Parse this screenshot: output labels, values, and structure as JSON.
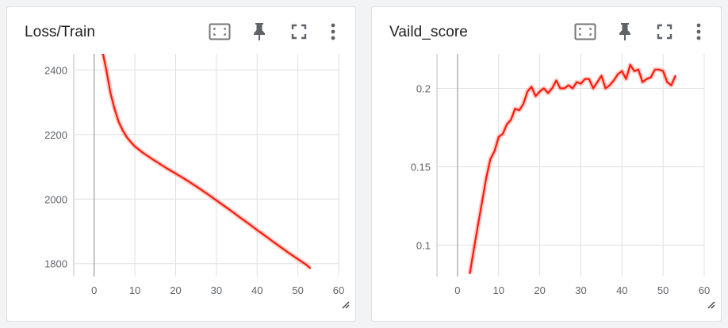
{
  "cards": [
    {
      "title": "Loss/Train",
      "icons": [
        "fit-domain-icon",
        "pin-icon",
        "fullscreen-icon",
        "more-vert-icon"
      ],
      "chart_data": {
        "type": "line",
        "title": "Loss/Train",
        "xlabel": "",
        "ylabel": "",
        "xlim": [
          -5,
          60
        ],
        "ylim": [
          1760,
          2450
        ],
        "x_ticks": [
          "0",
          "10",
          "20",
          "30",
          "40",
          "50",
          "60"
        ],
        "y_ticks": [
          "1800",
          "2000",
          "2200",
          "2400"
        ],
        "grid": true,
        "color": "#ff1a0a",
        "series": [
          {
            "x": [
              2,
              3,
              4,
              5,
              6,
              7,
              8,
              9,
              10,
              12,
              14,
              16,
              18,
              20,
              22,
              24,
              26,
              28,
              30,
              32,
              34,
              36,
              38,
              40,
              42,
              44,
              46,
              48,
              50,
              52,
              53
            ],
            "values": [
              2460,
              2400,
              2330,
              2280,
              2240,
              2213,
              2192,
              2177,
              2163,
              2143,
              2126,
              2110,
              2094,
              2079,
              2064,
              2048,
              2031,
              2014,
              1996,
              1978,
              1960,
              1941,
              1923,
              1904,
              1886,
              1867,
              1849,
              1831,
              1814,
              1797,
              1786
            ]
          }
        ]
      }
    },
    {
      "title": "Vaild_score",
      "icons": [
        "fit-domain-icon",
        "pin-icon",
        "fullscreen-icon",
        "more-vert-icon"
      ],
      "chart_data": {
        "type": "line",
        "title": "Vaild_score",
        "xlabel": "",
        "ylabel": "",
        "xlim": [
          -5,
          60
        ],
        "ylim": [
          0.08,
          0.222
        ],
        "x_ticks": [
          "0",
          "10",
          "20",
          "30",
          "40",
          "50",
          "60"
        ],
        "y_ticks": [
          "0.1",
          "0.15",
          "0.2"
        ],
        "grid": true,
        "color": "#ff1a0a",
        "series": [
          {
            "x": [
              3,
              4,
              5,
              6,
              7,
              8,
              9,
              10,
              11,
              12,
              13,
              14,
              15,
              16,
              17,
              18,
              19,
              20,
              21,
              22,
              23,
              24,
              25,
              26,
              27,
              28,
              29,
              30,
              31,
              32,
              33,
              34,
              35,
              36,
              37,
              38,
              39,
              40,
              41,
              42,
              43,
              44,
              45,
              46,
              47,
              48,
              49,
              50,
              51,
              52,
              53
            ],
            "values": [
              0.082,
              0.098,
              0.113,
              0.128,
              0.143,
              0.155,
              0.16,
              0.169,
              0.171,
              0.177,
              0.18,
              0.187,
              0.186,
              0.19,
              0.198,
              0.201,
              0.195,
              0.198,
              0.2,
              0.197,
              0.2,
              0.205,
              0.2,
              0.2,
              0.202,
              0.2,
              0.204,
              0.203,
              0.206,
              0.206,
              0.2,
              0.204,
              0.208,
              0.2,
              0.202,
              0.205,
              0.209,
              0.211,
              0.206,
              0.215,
              0.211,
              0.212,
              0.204,
              0.206,
              0.207,
              0.212,
              0.212,
              0.211,
              0.204,
              0.202,
              0.208
            ]
          }
        ]
      }
    }
  ]
}
